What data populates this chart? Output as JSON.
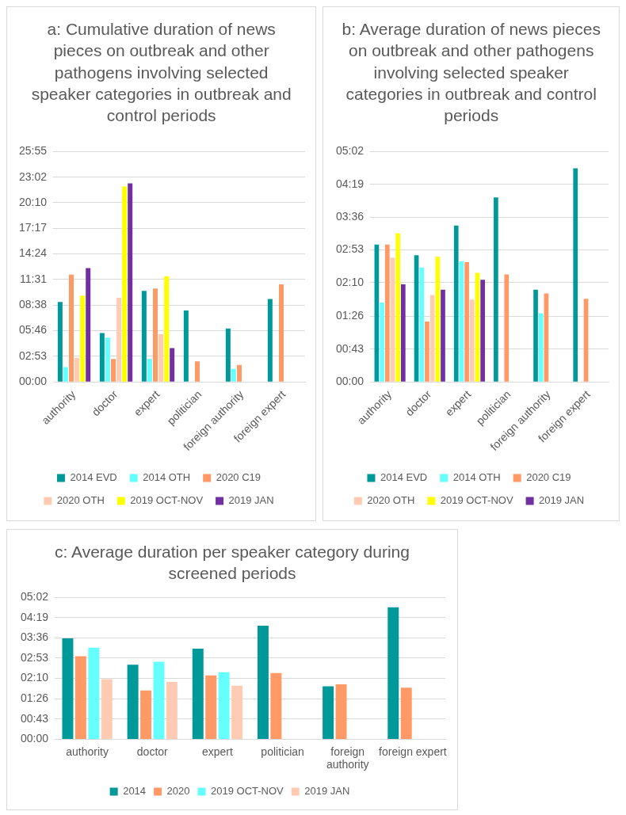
{
  "chart_data": [
    {
      "type": "bar",
      "title": "a: Cumulative duration of news pieces on outbreak and other pathogens involving selected speaker categories in outbreak and control periods",
      "categories": [
        "authority",
        "doctor",
        "expert",
        "politician",
        "foreign authority",
        "foreign expert"
      ],
      "series": [
        {
          "name": "2014 EVD",
          "color": "#009999",
          "values": [
            539,
            330,
            614,
            482,
            361,
            559
          ]
        },
        {
          "name": "2014 OTH",
          "color": "#66ffff",
          "values": [
            100,
            299,
            155,
            null,
            88,
            null
          ]
        },
        {
          "name": "2020 C19",
          "color": "#ff9966",
          "values": [
            724,
            155,
            630,
            138,
            115,
            658
          ]
        },
        {
          "name": "2020 OTH",
          "color": "#ffccb3",
          "values": [
            163,
            568,
            322,
            null,
            null,
            null
          ]
        },
        {
          "name": "2019 OCT-NOV",
          "color": "#ffff00",
          "values": [
            582,
            1319,
            714,
            null,
            null,
            null
          ]
        },
        {
          "name": "2019 JAN",
          "color": "#7030a0",
          "values": [
            768,
            1340,
            228,
            null,
            null,
            null
          ]
        }
      ],
      "ylim": [
        0,
        1555
      ],
      "yticks": [
        {
          "value": 0,
          "label": "00:00"
        },
        {
          "value": 173,
          "label": "02:53"
        },
        {
          "value": 346,
          "label": "05:46"
        },
        {
          "value": 518,
          "label": "08:38"
        },
        {
          "value": 691,
          "label": "11:31"
        },
        {
          "value": 864,
          "label": "14:24"
        },
        {
          "value": 1037,
          "label": "17:17"
        },
        {
          "value": 1210,
          "label": "20:10"
        },
        {
          "value": 1382,
          "label": "23:02"
        },
        {
          "value": 1555,
          "label": "25:55"
        }
      ],
      "grid": "y",
      "legend": "bottom"
    },
    {
      "type": "bar",
      "title": "b: Average duration of news pieces on outbreak and other pathogens involving selected speaker categories in outbreak and control periods",
      "categories": [
        "authority",
        "doctor",
        "expert",
        "politician",
        "foreign authority",
        "foreign expert"
      ],
      "series": [
        {
          "name": "2014 EVD",
          "color": "#009999",
          "values": [
            180,
            166,
            205,
            242,
            121,
            280
          ]
        },
        {
          "name": "2014 OTH",
          "color": "#66ffff",
          "values": [
            104,
            150,
            158,
            null,
            90,
            null
          ]
        },
        {
          "name": "2020 C19",
          "color": "#ff9966",
          "values": [
            180,
            79,
            157,
            141,
            116,
            109
          ]
        },
        {
          "name": "2020 OTH",
          "color": "#ffccb3",
          "values": [
            163,
            114,
            108,
            null,
            null,
            null
          ]
        },
        {
          "name": "2019 OCT-NOV",
          "color": "#ffff00",
          "values": [
            195,
            164,
            143,
            null,
            null,
            null
          ]
        },
        {
          "name": "2019 JAN",
          "color": "#7030a0",
          "values": [
            128,
            121,
            134,
            null,
            null,
            null
          ]
        }
      ],
      "ylim": [
        0,
        302
      ],
      "yticks": [
        {
          "value": 0,
          "label": "00:00"
        },
        {
          "value": 43,
          "label": "00:43"
        },
        {
          "value": 86,
          "label": "01:26"
        },
        {
          "value": 130,
          "label": "02:10"
        },
        {
          "value": 173,
          "label": "02:53"
        },
        {
          "value": 216,
          "label": "03:36"
        },
        {
          "value": 259,
          "label": "04:19"
        },
        {
          "value": 302,
          "label": "05:02"
        }
      ],
      "grid": "y",
      "legend": "bottom"
    },
    {
      "type": "bar",
      "title": "c: Average duration per speaker category during screened periods",
      "categories": [
        "authority",
        "doctor",
        "expert",
        "politician",
        "foreign authority",
        "foreign expert"
      ],
      "series": [
        {
          "name": "2014",
          "color": "#009999",
          "values": [
            215,
            159,
            193,
            242,
            113,
            281
          ]
        },
        {
          "name": "2020",
          "color": "#ff9966",
          "values": [
            177,
            104,
            136,
            141,
            117,
            110
          ]
        },
        {
          "name": "2019 OCT-NOV",
          "color": "#66ffff",
          "values": [
            195,
            165,
            143,
            null,
            null,
            null
          ]
        },
        {
          "name": "2019 JAN",
          "color": "#ffccb3",
          "values": [
            128,
            122,
            114,
            null,
            null,
            null
          ]
        }
      ],
      "ylim": [
        0,
        302
      ],
      "yticks": [
        {
          "value": 0,
          "label": "00:00"
        },
        {
          "value": 43,
          "label": "00:43"
        },
        {
          "value": 86,
          "label": "01:26"
        },
        {
          "value": 130,
          "label": "02:10"
        },
        {
          "value": 173,
          "label": "02:53"
        },
        {
          "value": 216,
          "label": "03:36"
        },
        {
          "value": 259,
          "label": "04:19"
        },
        {
          "value": 302,
          "label": "05:02"
        }
      ],
      "grid": "y",
      "legend": "bottom"
    }
  ]
}
